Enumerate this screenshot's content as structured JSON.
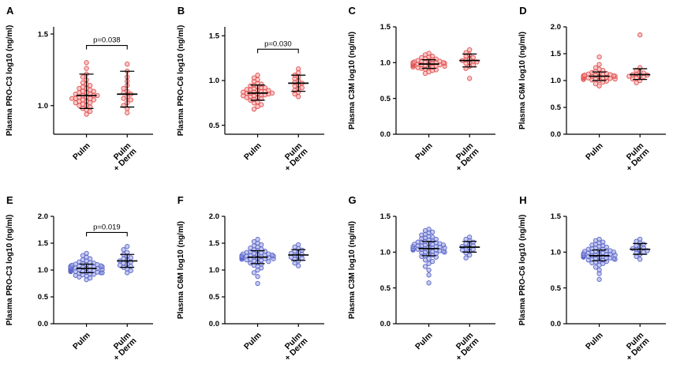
{
  "figure": {
    "background": "#ffffff",
    "rows": 2,
    "cols": 4
  },
  "colors": {
    "axis": "#000000",
    "error_bar": "#000000",
    "top_row_dot_fill": "#F59B9B",
    "top_row_dot_stroke": "#E05252",
    "bottom_row_dot_fill": "#98A0E0",
    "bottom_row_dot_stroke": "#5C66C9"
  },
  "x_categories": [
    "Pulm",
    "Pulm + Derm"
  ],
  "chart_data": [
    {
      "panel": "A",
      "type": "scatter",
      "ylabel": "Plasma PRO-C3 log10 (ng/ml)",
      "categories": [
        "Pulm",
        "Pulm + Derm"
      ],
      "ylim": [
        0.8,
        1.55
      ],
      "yticks": [
        1.0,
        1.5
      ],
      "grid": false,
      "legend": "none",
      "p_value": "p=0.038",
      "bracket_y": 1.42,
      "style": {
        "fill": "#F59B9B",
        "stroke": "#E05252"
      },
      "series": [
        {
          "name": "Pulm",
          "values": [
            0.94,
            0.96,
            0.97,
            0.98,
            0.99,
            1.0,
            1.0,
            1.01,
            1.02,
            1.02,
            1.03,
            1.03,
            1.04,
            1.04,
            1.05,
            1.05,
            1.05,
            1.06,
            1.06,
            1.07,
            1.07,
            1.07,
            1.08,
            1.08,
            1.09,
            1.09,
            1.1,
            1.1,
            1.11,
            1.12,
            1.12,
            1.13,
            1.14,
            1.15,
            1.16,
            1.18,
            1.2,
            1.22,
            1.26,
            1.3
          ],
          "err": {
            "center": 1.07,
            "low": 0.98,
            "high": 1.22
          }
        },
        {
          "name": "Pulm + Derm",
          "values": [
            0.95,
            0.98,
            1.0,
            1.02,
            1.04,
            1.05,
            1.06,
            1.08,
            1.09,
            1.1,
            1.12,
            1.14,
            1.17,
            1.2,
            1.24,
            1.29
          ],
          "err": {
            "center": 1.08,
            "low": 0.99,
            "high": 1.24
          }
        }
      ]
    },
    {
      "panel": "B",
      "type": "scatter",
      "ylabel": "Plasma PRO-C6 log10 (ng/ml)",
      "categories": [
        "Pulm",
        "Pulm + Derm"
      ],
      "ylim": [
        0.4,
        1.6
      ],
      "yticks": [
        0.5,
        1.0,
        1.5
      ],
      "grid": false,
      "legend": "none",
      "p_value": "p=0.030",
      "bracket_y": 1.35,
      "style": {
        "fill": "#F59B9B",
        "stroke": "#E05252"
      },
      "series": [
        {
          "name": "Pulm",
          "values": [
            0.68,
            0.71,
            0.73,
            0.75,
            0.76,
            0.78,
            0.79,
            0.8,
            0.81,
            0.81,
            0.82,
            0.83,
            0.83,
            0.84,
            0.84,
            0.85,
            0.85,
            0.86,
            0.86,
            0.86,
            0.87,
            0.87,
            0.88,
            0.88,
            0.89,
            0.89,
            0.9,
            0.9,
            0.91,
            0.92,
            0.92,
            0.93,
            0.94,
            0.95,
            0.96,
            0.97,
            0.99,
            1.01,
            1.03,
            1.06
          ],
          "err": {
            "center": 0.86,
            "low": 0.78,
            "high": 0.95
          }
        },
        {
          "name": "Pulm + Derm",
          "values": [
            0.82,
            0.85,
            0.87,
            0.89,
            0.91,
            0.92,
            0.94,
            0.95,
            0.97,
            0.98,
            1.0,
            1.02,
            1.04,
            1.06,
            1.09,
            1.13
          ],
          "err": {
            "center": 0.97,
            "low": 0.88,
            "high": 1.06
          }
        }
      ]
    },
    {
      "panel": "C",
      "type": "scatter",
      "ylabel": "Plasma C3M log10 (ng/ml)",
      "categories": [
        "Pulm",
        "Pulm + Derm"
      ],
      "ylim": [
        0.0,
        1.5
      ],
      "yticks": [
        0.0,
        0.5,
        1.0,
        1.5
      ],
      "grid": false,
      "legend": "none",
      "p_value": null,
      "bracket_y": null,
      "style": {
        "fill": "#F59B9B",
        "stroke": "#E05252"
      },
      "series": [
        {
          "name": "Pulm",
          "values": [
            0.85,
            0.87,
            0.89,
            0.9,
            0.91,
            0.92,
            0.93,
            0.93,
            0.94,
            0.94,
            0.95,
            0.95,
            0.96,
            0.96,
            0.97,
            0.97,
            0.97,
            0.98,
            0.98,
            0.98,
            0.99,
            0.99,
            0.99,
            1.0,
            1.0,
            1.0,
            1.01,
            1.01,
            1.02,
            1.02,
            1.03,
            1.03,
            1.04,
            1.05,
            1.06,
            1.07,
            1.08,
            1.09,
            1.11,
            1.13
          ],
          "err": {
            "center": 0.98,
            "low": 0.92,
            "high": 1.04
          }
        },
        {
          "name": "Pulm + Derm",
          "values": [
            0.78,
            0.92,
            0.95,
            0.97,
            0.99,
            1.0,
            1.01,
            1.02,
            1.03,
            1.04,
            1.05,
            1.07,
            1.09,
            1.11,
            1.14,
            1.18
          ],
          "err": {
            "center": 1.03,
            "low": 0.94,
            "high": 1.12
          }
        }
      ]
    },
    {
      "panel": "D",
      "type": "scatter",
      "ylabel": "Plasma C6M log10 (ng/ml)",
      "categories": [
        "Pulm",
        "Pulm + Derm"
      ],
      "ylim": [
        0.0,
        2.0
      ],
      "yticks": [
        0.0,
        0.5,
        1.0,
        1.5,
        2.0
      ],
      "grid": false,
      "legend": "none",
      "p_value": null,
      "bracket_y": null,
      "style": {
        "fill": "#F59B9B",
        "stroke": "#E05252"
      },
      "series": [
        {
          "name": "Pulm",
          "values": [
            0.9,
            0.94,
            0.97,
            0.99,
            1.0,
            1.01,
            1.02,
            1.03,
            1.03,
            1.04,
            1.04,
            1.05,
            1.05,
            1.06,
            1.06,
            1.07,
            1.07,
            1.08,
            1.08,
            1.09,
            1.09,
            1.1,
            1.1,
            1.11,
            1.12,
            1.12,
            1.13,
            1.14,
            1.15,
            1.17,
            1.19,
            1.21,
            1.24,
            1.3,
            1.44
          ],
          "err": {
            "center": 1.08,
            "low": 1.0,
            "high": 1.16
          }
        },
        {
          "name": "Pulm + Derm",
          "values": [
            0.96,
            1.0,
            1.03,
            1.05,
            1.07,
            1.08,
            1.09,
            1.1,
            1.11,
            1.12,
            1.14,
            1.16,
            1.19,
            1.24,
            1.85
          ],
          "err": {
            "center": 1.11,
            "low": 1.02,
            "high": 1.22
          }
        }
      ]
    },
    {
      "panel": "E",
      "type": "scatter",
      "ylabel": "Plasma PRO-C3 log10 (ng/ml)",
      "categories": [
        "Pulm",
        "Pulm + Derm"
      ],
      "ylim": [
        0.0,
        2.0
      ],
      "yticks": [
        0.0,
        0.5,
        1.0,
        1.5,
        2.0
      ],
      "grid": false,
      "legend": "none",
      "p_value": "p=0.019",
      "bracket_y": 1.7,
      "style": {
        "fill": "#98A0E0",
        "stroke": "#5C66C9"
      },
      "series": [
        {
          "name": "Pulm",
          "values": [
            0.82,
            0.85,
            0.87,
            0.89,
            0.9,
            0.91,
            0.92,
            0.93,
            0.94,
            0.95,
            0.95,
            0.96,
            0.96,
            0.97,
            0.97,
            0.98,
            0.98,
            0.99,
            0.99,
            1.0,
            1.0,
            1.0,
            1.01,
            1.01,
            1.02,
            1.02,
            1.02,
            1.03,
            1.03,
            1.03,
            1.04,
            1.04,
            1.05,
            1.05,
            1.05,
            1.06,
            1.06,
            1.07,
            1.07,
            1.08,
            1.08,
            1.09,
            1.1,
            1.1,
            1.11,
            1.12,
            1.13,
            1.14,
            1.15,
            1.17,
            1.19,
            1.21,
            1.24,
            1.27,
            1.31
          ],
          "err": {
            "center": 1.03,
            "low": 0.95,
            "high": 1.11
          }
        },
        {
          "name": "Pulm + Derm",
          "values": [
            0.95,
            0.99,
            1.02,
            1.05,
            1.07,
            1.09,
            1.11,
            1.13,
            1.15,
            1.17,
            1.19,
            1.21,
            1.23,
            1.26,
            1.29,
            1.33,
            1.38,
            1.44
          ],
          "err": {
            "center": 1.17,
            "low": 1.05,
            "high": 1.29
          }
        }
      ]
    },
    {
      "panel": "F",
      "type": "scatter",
      "ylabel": "Plasma C6M log10 (ng/ml)",
      "categories": [
        "Pulm",
        "Pulm + Derm"
      ],
      "ylim": [
        0.0,
        2.0
      ],
      "yticks": [
        0.0,
        0.5,
        1.0,
        1.5,
        2.0
      ],
      "grid": false,
      "legend": "none",
      "p_value": null,
      "bracket_y": null,
      "style": {
        "fill": "#98A0E0",
        "stroke": "#5C66C9"
      },
      "series": [
        {
          "name": "Pulm",
          "values": [
            0.75,
            0.88,
            0.95,
            1.0,
            1.04,
            1.07,
            1.09,
            1.11,
            1.13,
            1.14,
            1.16,
            1.17,
            1.18,
            1.19,
            1.2,
            1.2,
            1.21,
            1.21,
            1.22,
            1.22,
            1.23,
            1.23,
            1.24,
            1.24,
            1.25,
            1.25,
            1.26,
            1.26,
            1.27,
            1.27,
            1.28,
            1.28,
            1.29,
            1.3,
            1.3,
            1.31,
            1.32,
            1.33,
            1.34,
            1.35,
            1.36,
            1.38,
            1.39,
            1.41,
            1.43,
            1.45,
            1.47,
            1.5,
            1.53,
            1.57
          ],
          "err": {
            "center": 1.24,
            "low": 1.12,
            "high": 1.36
          }
        },
        {
          "name": "Pulm + Derm",
          "values": [
            1.08,
            1.13,
            1.17,
            1.2,
            1.22,
            1.24,
            1.26,
            1.28,
            1.29,
            1.31,
            1.33,
            1.35,
            1.37,
            1.4,
            1.43,
            1.47
          ],
          "err": {
            "center": 1.28,
            "low": 1.18,
            "high": 1.38
          }
        }
      ]
    },
    {
      "panel": "G",
      "type": "scatter",
      "ylabel": "Plasma C3M log10 (ng/ml)",
      "categories": [
        "Pulm",
        "Pulm + Derm"
      ],
      "ylim": [
        0.0,
        1.5
      ],
      "yticks": [
        0.0,
        0.5,
        1.0,
        1.5
      ],
      "grid": false,
      "legend": "none",
      "p_value": null,
      "bracket_y": null,
      "style": {
        "fill": "#98A0E0",
        "stroke": "#5C66C9"
      },
      "series": [
        {
          "name": "Pulm",
          "values": [
            0.57,
            0.68,
            0.75,
            0.8,
            0.84,
            0.87,
            0.89,
            0.91,
            0.93,
            0.94,
            0.95,
            0.96,
            0.97,
            0.98,
            0.99,
            1.0,
            1.0,
            1.01,
            1.01,
            1.02,
            1.02,
            1.03,
            1.03,
            1.04,
            1.04,
            1.04,
            1.05,
            1.05,
            1.05,
            1.06,
            1.06,
            1.07,
            1.07,
            1.08,
            1.08,
            1.09,
            1.09,
            1.1,
            1.1,
            1.11,
            1.11,
            1.12,
            1.12,
            1.13,
            1.14,
            1.14,
            1.15,
            1.16,
            1.17,
            1.18,
            1.19,
            1.2,
            1.21,
            1.22,
            1.24,
            1.25,
            1.27,
            1.28,
            1.3,
            1.32
          ],
          "err": {
            "center": 1.05,
            "low": 0.95,
            "high": 1.15
          }
        },
        {
          "name": "Pulm + Derm",
          "values": [
            0.92,
            0.96,
            0.99,
            1.01,
            1.03,
            1.04,
            1.06,
            1.07,
            1.08,
            1.09,
            1.11,
            1.12,
            1.14,
            1.16,
            1.18,
            1.21
          ],
          "err": {
            "center": 1.07,
            "low": 1.0,
            "high": 1.15
          }
        }
      ]
    },
    {
      "panel": "H",
      "type": "scatter",
      "ylabel": "Plasma PRO-C6 log10 (ng/ml)",
      "categories": [
        "Pulm",
        "Pulm + Derm"
      ],
      "ylim": [
        0.0,
        1.5
      ],
      "yticks": [
        0.0,
        0.5,
        1.0,
        1.5
      ],
      "grid": false,
      "legend": "none",
      "p_value": null,
      "bracket_y": null,
      "style": {
        "fill": "#98A0E0",
        "stroke": "#5C66C9"
      },
      "series": [
        {
          "name": "Pulm",
          "values": [
            0.62,
            0.7,
            0.75,
            0.79,
            0.82,
            0.84,
            0.85,
            0.86,
            0.87,
            0.88,
            0.89,
            0.89,
            0.9,
            0.9,
            0.91,
            0.91,
            0.92,
            0.92,
            0.93,
            0.93,
            0.94,
            0.94,
            0.94,
            0.95,
            0.95,
            0.95,
            0.96,
            0.96,
            0.96,
            0.97,
            0.97,
            0.98,
            0.98,
            0.99,
            0.99,
            1.0,
            1.0,
            1.01,
            1.01,
            1.02,
            1.02,
            1.03,
            1.04,
            1.04,
            1.05,
            1.06,
            1.07,
            1.08,
            1.09,
            1.1,
            1.11,
            1.13,
            1.14,
            1.16,
            1.18
          ],
          "err": {
            "center": 0.95,
            "low": 0.88,
            "high": 1.03
          }
        },
        {
          "name": "Pulm + Derm",
          "values": [
            0.9,
            0.94,
            0.97,
            0.99,
            1.0,
            1.02,
            1.03,
            1.04,
            1.05,
            1.06,
            1.08,
            1.09,
            1.11,
            1.13,
            1.15,
            1.18
          ],
          "err": {
            "center": 1.04,
            "low": 0.97,
            "high": 1.12
          }
        }
      ]
    }
  ]
}
